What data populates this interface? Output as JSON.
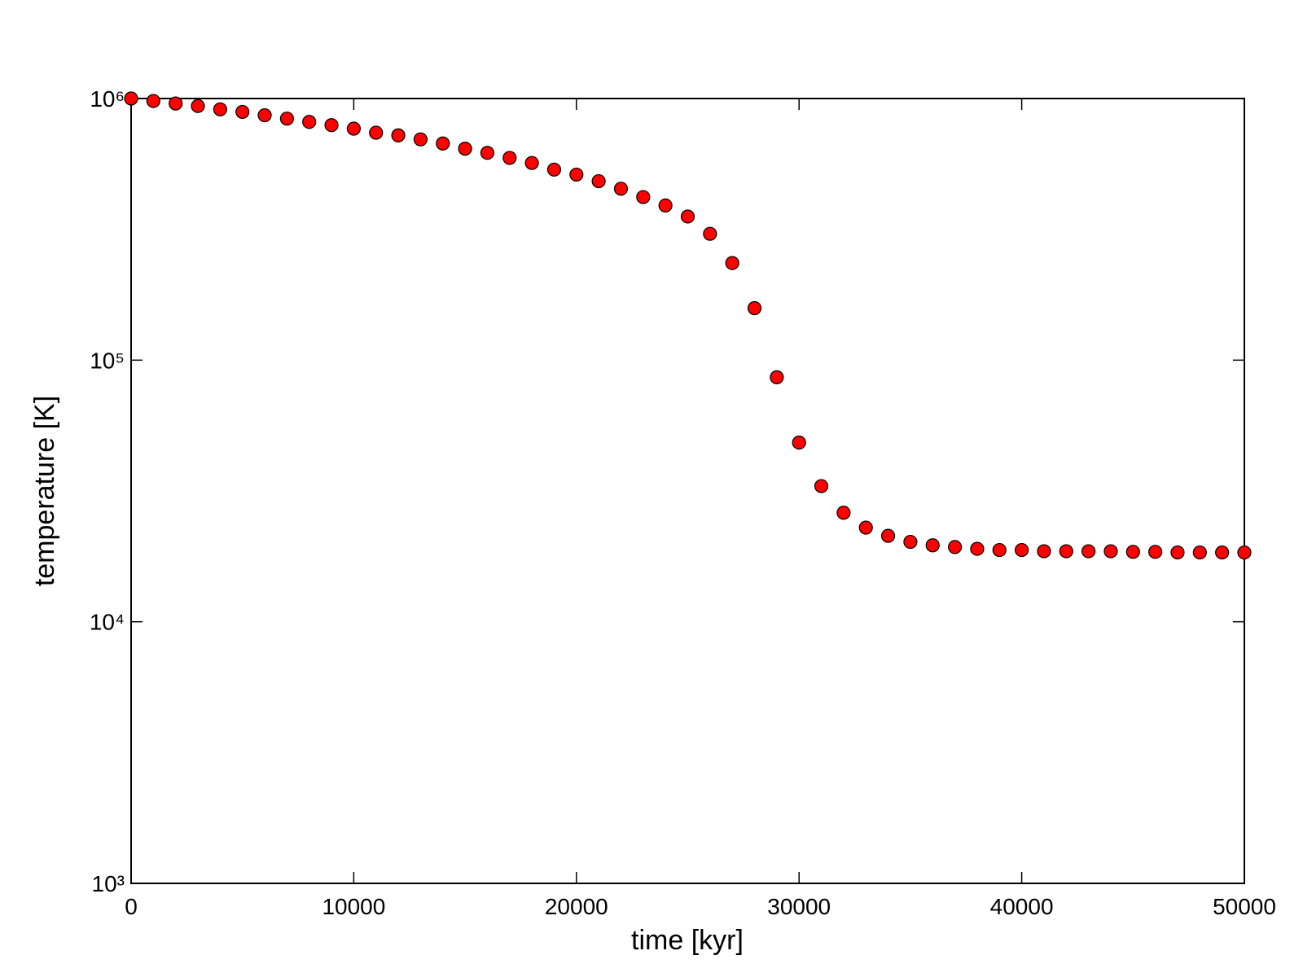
{
  "chart_data": {
    "type": "scatter",
    "x_label": "time [kyr]",
    "y_label": "temperature [K]",
    "x": [
      0,
      1000,
      2000,
      3000,
      4000,
      5000,
      6000,
      7000,
      8000,
      9000,
      10000,
      11000,
      12000,
      13000,
      14000,
      15000,
      16000,
      17000,
      18000,
      19000,
      20000,
      21000,
      22000,
      23000,
      24000,
      25000,
      26000,
      27000,
      28000,
      29000,
      30000,
      31000,
      32000,
      33000,
      34000,
      35000,
      36000,
      37000,
      38000,
      39000,
      40000,
      41000,
      42000,
      43000,
      44000,
      45000,
      46000,
      47000,
      48000,
      49000,
      50000
    ],
    "values": [
      1000000,
      978000,
      957000,
      936000,
      909000,
      889000,
      863000,
      838000,
      814000,
      791000,
      767000,
      740000,
      723000,
      698000,
      673000,
      643000,
      620000,
      593000,
      567000,
      535000,
      512000,
      483000,
      452000,
      420000,
      390000,
      354000,
      304000,
      235000,
      158000,
      86000,
      48400,
      33000,
      26100,
      22900,
      21300,
      20200,
      19600,
      19300,
      19000,
      18800,
      18800,
      18600,
      18600,
      18600,
      18600,
      18500,
      18500,
      18400,
      18400,
      18400,
      18400
    ],
    "color": "#ff0000",
    "edge_color": "#000000",
    "xlim": [
      0,
      50000
    ],
    "xticks": [
      0,
      10000,
      20000,
      30000,
      40000,
      50000
    ],
    "ylim": [
      1000,
      1000000
    ],
    "y_log": true,
    "yticks": [
      {
        "value": 1000,
        "label": "10³"
      },
      {
        "value": 10000,
        "label": "10⁴"
      },
      {
        "value": 100000,
        "label": "10⁵"
      },
      {
        "value": 1000000,
        "label": "10⁶"
      }
    ]
  }
}
